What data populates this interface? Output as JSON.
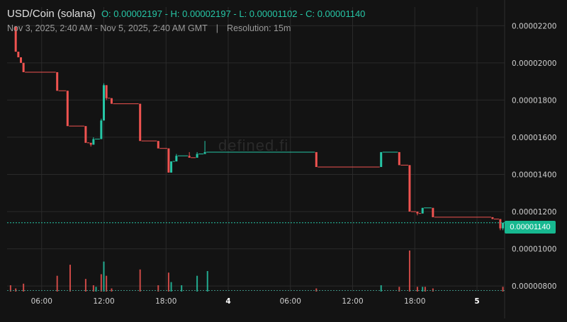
{
  "header": {
    "symbol": "USD/Coin (solana)",
    "ohlc": "O: 0.00002197 - H: 0.00002197 - L: 0.00001102 - C: 0.00001140",
    "range": "Nov 3, 2025, 2:40 AM - Nov 5, 2025, 2:40 AM GMT",
    "separator": "|",
    "resolution": "Resolution: 15m"
  },
  "watermark": "defined.fi",
  "last_price_label": "0.00001140",
  "colors": {
    "up": "#26c6a6",
    "down": "#ef5350",
    "background": "#131313",
    "grid": "#2a2a2a"
  },
  "chart_data": {
    "type": "candlestick",
    "x_axis_labels": [
      "06:00",
      "12:00",
      "18:00",
      "4",
      "06:00",
      "12:00",
      "18:00",
      "5"
    ],
    "y_axis_labels": [
      "0.00002200",
      "0.00002000",
      "0.00001800",
      "0.00001600",
      "0.00001400",
      "0.00001200",
      "0.00001000",
      "0.00000800"
    ],
    "ylim": [
      7.7e-06,
      2.3e-05
    ],
    "grid": true,
    "last_price": 1.14e-05,
    "volume_panel": true,
    "candles": [
      {
        "t": "2025-11-03T03:30",
        "o": 2.197e-05,
        "h": 2.197e-05,
        "l": 2.06e-05,
        "c": 2.06e-05
      },
      {
        "t": "2025-11-03T03:45",
        "o": 2.06e-05,
        "h": 2.06e-05,
        "l": 2.03e-05,
        "c": 2.03e-05
      },
      {
        "t": "2025-11-03T04:00",
        "o": 2.03e-05,
        "h": 2.03e-05,
        "l": 2e-05,
        "c": 2e-05
      },
      {
        "t": "2025-11-03T04:15",
        "o": 2e-05,
        "h": 2e-05,
        "l": 1.95e-05,
        "c": 1.95e-05
      },
      {
        "t": "2025-11-03T07:30",
        "o": 1.95e-05,
        "h": 1.95e-05,
        "l": 1.85e-05,
        "c": 1.85e-05
      },
      {
        "t": "2025-11-03T08:30",
        "o": 1.85e-05,
        "h": 1.85e-05,
        "l": 1.66e-05,
        "c": 1.66e-05
      },
      {
        "t": "2025-11-03T10:15",
        "o": 1.66e-05,
        "h": 1.66e-05,
        "l": 1.57e-05,
        "c": 1.57e-05
      },
      {
        "t": "2025-11-03T10:45",
        "o": 1.57e-05,
        "h": 1.57e-05,
        "l": 1.55e-05,
        "c": 1.56e-05
      },
      {
        "t": "2025-11-03T11:00",
        "o": 1.56e-05,
        "h": 1.6e-05,
        "l": 1.56e-05,
        "c": 1.59e-05
      },
      {
        "t": "2025-11-03T11:45",
        "o": 1.59e-05,
        "h": 1.7e-05,
        "l": 1.59e-05,
        "c": 1.69e-05
      },
      {
        "t": "2025-11-03T12:00",
        "o": 1.69e-05,
        "h": 1.89e-05,
        "l": 1.69e-05,
        "c": 1.88e-05
      },
      {
        "t": "2025-11-03T12:15",
        "o": 1.88e-05,
        "h": 1.88e-05,
        "l": 1.8e-05,
        "c": 1.81e-05
      },
      {
        "t": "2025-11-03T12:45",
        "o": 1.81e-05,
        "h": 1.81e-05,
        "l": 1.78e-05,
        "c": 1.78e-05
      },
      {
        "t": "2025-11-03T15:30",
        "o": 1.78e-05,
        "h": 1.78e-05,
        "l": 1.58e-05,
        "c": 1.58e-05
      },
      {
        "t": "2025-11-03T17:15",
        "o": 1.58e-05,
        "h": 1.58e-05,
        "l": 1.54e-05,
        "c": 1.54e-05
      },
      {
        "t": "2025-11-03T18:15",
        "o": 1.54e-05,
        "h": 1.54e-05,
        "l": 1.41e-05,
        "c": 1.41e-05
      },
      {
        "t": "2025-11-03T18:30",
        "o": 1.41e-05,
        "h": 1.47e-05,
        "l": 1.41e-05,
        "c": 1.47e-05
      },
      {
        "t": "2025-11-03T19:00",
        "o": 1.47e-05,
        "h": 1.51e-05,
        "l": 1.47e-05,
        "c": 1.5e-05
      },
      {
        "t": "2025-11-03T20:15",
        "o": 1.5e-05,
        "h": 1.52e-05,
        "l": 1.49e-05,
        "c": 1.49e-05
      },
      {
        "t": "2025-11-03T21:00",
        "o": 1.49e-05,
        "h": 1.52e-05,
        "l": 1.49e-05,
        "c": 1.51e-05
      },
      {
        "t": "2025-11-03T21:45",
        "o": 1.51e-05,
        "h": 1.58e-05,
        "l": 1.51e-05,
        "c": 1.52e-05
      },
      {
        "t": "2025-11-04T08:30",
        "o": 1.52e-05,
        "h": 1.52e-05,
        "l": 1.44e-05,
        "c": 1.44e-05
      },
      {
        "t": "2025-11-04T14:45",
        "o": 1.44e-05,
        "h": 1.52e-05,
        "l": 1.44e-05,
        "c": 1.52e-05
      },
      {
        "t": "2025-11-04T16:30",
        "o": 1.52e-05,
        "h": 1.52e-05,
        "l": 1.45e-05,
        "c": 1.45e-05
      },
      {
        "t": "2025-11-04T17:30",
        "o": 1.45e-05,
        "h": 1.45e-05,
        "l": 1.2e-05,
        "c": 1.2e-05
      },
      {
        "t": "2025-11-04T18:15",
        "o": 1.2e-05,
        "h": 1.2e-05,
        "l": 1.18e-05,
        "c": 1.19e-05
      },
      {
        "t": "2025-11-04T18:45",
        "o": 1.19e-05,
        "h": 1.22e-05,
        "l": 1.19e-05,
        "c": 1.22e-05
      },
      {
        "t": "2025-11-04T19:45",
        "o": 1.22e-05,
        "h": 1.22e-05,
        "l": 1.17e-05,
        "c": 1.17e-05
      },
      {
        "t": "2025-11-05T01:30",
        "o": 1.17e-05,
        "h": 1.17e-05,
        "l": 1.16e-05,
        "c": 1.16e-05
      },
      {
        "t": "2025-11-05T02:15",
        "o": 1.16e-05,
        "h": 1.16e-05,
        "l": 1.1e-05,
        "c": 1.11e-05
      },
      {
        "t": "2025-11-05T02:30",
        "o": 1.11e-05,
        "h": 1.14e-05,
        "l": 1.1e-05,
        "c": 1.14e-05
      }
    ],
    "volumes": [
      {
        "t": "2025-11-03T03:00",
        "v": 4,
        "dir": "down"
      },
      {
        "t": "2025-11-03T03:30",
        "v": 2,
        "dir": "down"
      },
      {
        "t": "2025-11-03T04:15",
        "v": 5,
        "dir": "down"
      },
      {
        "t": "2025-11-03T07:30",
        "v": 10,
        "dir": "down"
      },
      {
        "t": "2025-11-03T08:45",
        "v": 17,
        "dir": "down"
      },
      {
        "t": "2025-11-03T10:15",
        "v": 8,
        "dir": "down"
      },
      {
        "t": "2025-11-03T11:00",
        "v": 4,
        "dir": "down"
      },
      {
        "t": "2025-11-03T11:15",
        "v": 3,
        "dir": "up"
      },
      {
        "t": "2025-11-03T11:45",
        "v": 11,
        "dir": "down"
      },
      {
        "t": "2025-11-03T12:00",
        "v": 19,
        "dir": "up"
      },
      {
        "t": "2025-11-03T12:15",
        "v": 10,
        "dir": "down"
      },
      {
        "t": "2025-11-03T12:45",
        "v": 2,
        "dir": "down"
      },
      {
        "t": "2025-11-03T15:30",
        "v": 14,
        "dir": "down"
      },
      {
        "t": "2025-11-03T17:15",
        "v": 4,
        "dir": "down"
      },
      {
        "t": "2025-11-03T18:15",
        "v": 12,
        "dir": "down"
      },
      {
        "t": "2025-11-03T18:30",
        "v": 6,
        "dir": "up"
      },
      {
        "t": "2025-11-03T19:30",
        "v": 4,
        "dir": "up"
      },
      {
        "t": "2025-11-03T21:00",
        "v": 10,
        "dir": "up"
      },
      {
        "t": "2025-11-03T22:00",
        "v": 13,
        "dir": "up"
      },
      {
        "t": "2025-11-04T08:30",
        "v": 2,
        "dir": "down"
      },
      {
        "t": "2025-11-04T14:45",
        "v": 4,
        "dir": "up"
      },
      {
        "t": "2025-11-04T16:30",
        "v": 3,
        "dir": "down"
      },
      {
        "t": "2025-11-04T17:30",
        "v": 26,
        "dir": "down"
      },
      {
        "t": "2025-11-04T18:15",
        "v": 3,
        "dir": "down"
      },
      {
        "t": "2025-11-04T18:45",
        "v": 3,
        "dir": "up"
      },
      {
        "t": "2025-11-04T19:00",
        "v": 3,
        "dir": "down"
      },
      {
        "t": "2025-11-04T19:45",
        "v": 2,
        "dir": "down"
      },
      {
        "t": "2025-11-05T02:30",
        "v": 3,
        "dir": "down"
      }
    ]
  }
}
